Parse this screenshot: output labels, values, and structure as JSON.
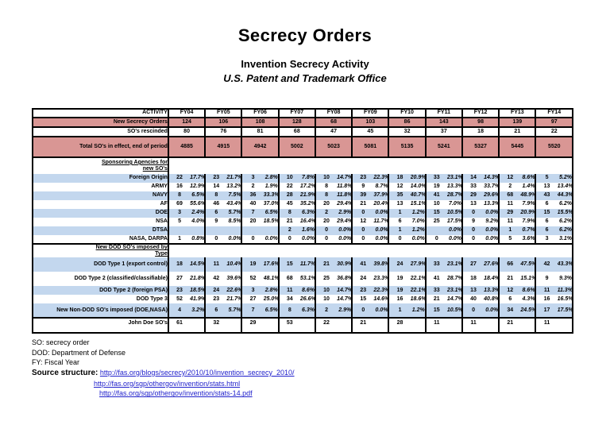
{
  "title": "Secrecy Orders",
  "subtitle1": "Invention Secrecy Activity",
  "subtitle2": "U.S. Patent and Trademark Office",
  "colors": {
    "row_pink": "#D99694",
    "row_blue": "#C3D7EE",
    "link_blue": "#2222cc",
    "border": "#000000"
  },
  "table": {
    "activity_header": "ACTIVITY",
    "years": [
      "FY04",
      "FY05",
      "FY06",
      "FY07",
      "FY08",
      "FY09",
      "FY10",
      "FY11",
      "FY12",
      "FY13",
      "FY14"
    ],
    "top_rows": [
      {
        "label": "New Secrecy Orders",
        "shade": "pink",
        "values": [
          "124",
          "106",
          "108",
          "128",
          "68",
          "103",
          "86",
          "143",
          "98",
          "139",
          "97"
        ]
      },
      {
        "label": "SO's rescinded",
        "shade": "",
        "values": [
          "80",
          "76",
          "81",
          "68",
          "47",
          "45",
          "32",
          "37",
          "18",
          "21",
          "22"
        ]
      },
      {
        "label": "Total SO's in effect, end of period",
        "shade": "pink",
        "values": [
          "4885",
          "4915",
          "4942",
          "5002",
          "5023",
          "5081",
          "5135",
          "5241",
          "5327",
          "5445",
          "5520"
        ]
      }
    ],
    "sections": [
      {
        "header_lines": [
          "Sponsoring Agencies for",
          "new SO's"
        ],
        "rows": [
          {
            "label": "Foreign Origin",
            "shade": "blue",
            "cells": [
              [
                "22",
                "17.7%"
              ],
              [
                "23",
                "21.7%"
              ],
              [
                "3",
                "2.8%"
              ],
              [
                "10",
                "7.8%"
              ],
              [
                "10",
                "14.7%"
              ],
              [
                "23",
                "22.3%"
              ],
              [
                "18",
                "20.9%"
              ],
              [
                "33",
                "23.1%"
              ],
              [
                "14",
                "14.3%"
              ],
              [
                "12",
                "8.6%"
              ],
              [
                "5",
                "5.2%"
              ]
            ]
          },
          {
            "label": "ARMY",
            "shade": "",
            "cells": [
              [
                "16",
                "12.9%"
              ],
              [
                "14",
                "13.2%"
              ],
              [
                "2",
                "1.9%"
              ],
              [
                "22",
                "17.2%"
              ],
              [
                "8",
                "11.8%"
              ],
              [
                "9",
                "8.7%"
              ],
              [
                "12",
                "14.0%"
              ],
              [
                "19",
                "13.3%"
              ],
              [
                "33",
                "33.7%"
              ],
              [
                "2",
                "1.4%"
              ],
              [
                "13",
                "13.4%"
              ]
            ]
          },
          {
            "label": "NAVY",
            "shade": "blue",
            "cells": [
              [
                "8",
                "6.5%"
              ],
              [
                "8",
                "7.5%"
              ],
              [
                "36",
                "33.3%"
              ],
              [
                "28",
                "21.9%"
              ],
              [
                "8",
                "11.8%"
              ],
              [
                "39",
                "37.9%"
              ],
              [
                "35",
                "40.7%"
              ],
              [
                "41",
                "28.7%"
              ],
              [
                "29",
                "29.6%"
              ],
              [
                "68",
                "48.9%"
              ],
              [
                "43",
                "44.3%"
              ]
            ]
          },
          {
            "label": "AF",
            "shade": "",
            "cells": [
              [
                "69",
                "55.6%"
              ],
              [
                "46",
                "43.4%"
              ],
              [
                "40",
                "37.0%"
              ],
              [
                "45",
                "35.2%"
              ],
              [
                "20",
                "29.4%"
              ],
              [
                "21",
                "20.4%"
              ],
              [
                "13",
                "15.1%"
              ],
              [
                "10",
                "7.0%"
              ],
              [
                "13",
                "13.3%"
              ],
              [
                "11",
                "7.9%"
              ],
              [
                "6",
                "6.2%"
              ]
            ]
          },
          {
            "label": "DOE",
            "shade": "blue",
            "cells": [
              [
                "3",
                "2.4%"
              ],
              [
                "6",
                "5.7%"
              ],
              [
                "7",
                "6.5%"
              ],
              [
                "8",
                "6.3%"
              ],
              [
                "2",
                "2.9%"
              ],
              [
                "0",
                "0.0%"
              ],
              [
                "1",
                "1.2%"
              ],
              [
                "15",
                "10.5%"
              ],
              [
                "0",
                "0.0%"
              ],
              [
                "29",
                "20.9%"
              ],
              [
                "15",
                "15.5%"
              ]
            ]
          },
          {
            "label": "NSA",
            "shade": "",
            "cells": [
              [
                "5",
                "4.0%"
              ],
              [
                "9",
                "8.5%"
              ],
              [
                "20",
                "18.5%"
              ],
              [
                "21",
                "16.4%"
              ],
              [
                "20",
                "29.4%"
              ],
              [
                "12",
                "11.7%"
              ],
              [
                "6",
                "7.0%"
              ],
              [
                "25",
                "17.5%"
              ],
              [
                "9",
                "9.2%"
              ],
              [
                "11",
                "7.9%"
              ],
              [
                "6",
                "6.2%"
              ]
            ]
          },
          {
            "label": "DTSA",
            "shade": "blue",
            "cells": [
              [
                "",
                ""
              ],
              [
                "",
                ""
              ],
              [
                "",
                ""
              ],
              [
                "2",
                "1.6%"
              ],
              [
                "0",
                "0.0%"
              ],
              [
                "0",
                "0.0%"
              ],
              [
                "1",
                "1.2%"
              ],
              [
                "",
                "0.0%"
              ],
              [
                "0",
                "0.0%"
              ],
              [
                "1",
                "0.7%"
              ],
              [
                "6",
                "6.2%"
              ]
            ]
          },
          {
            "label": "NASA, DARPA",
            "shade": "",
            "cells": [
              [
                "1",
                "0.8%"
              ],
              [
                "0",
                "0.0%"
              ],
              [
                "0",
                "0.0%"
              ],
              [
                "0",
                "0.0%"
              ],
              [
                "0",
                "0.0%"
              ],
              [
                "0",
                "0.0%"
              ],
              [
                "0",
                "0.0%"
              ],
              [
                "0",
                "0.0%"
              ],
              [
                "0",
                "0.0%"
              ],
              [
                "5",
                "3.6%"
              ],
              [
                "3",
                "3.1%"
              ]
            ]
          }
        ]
      },
      {
        "header_lines": [
          "New DOD SO's imposed by",
          "Type"
        ],
        "rows": [
          {
            "label": "DOD Type 1 (export control)",
            "shade": "blue",
            "cells": [
              [
                "18",
                "14.5%"
              ],
              [
                "11",
                "10.4%"
              ],
              [
                "19",
                "17.6%"
              ],
              [
                "15",
                "11.7%"
              ],
              [
                "21",
                "30.9%"
              ],
              [
                "41",
                "39.8%"
              ],
              [
                "24",
                "27.9%"
              ],
              [
                "33",
                "23.1%"
              ],
              [
                "27",
                "27.6%"
              ],
              [
                "66",
                "47.5%"
              ],
              [
                "42",
                "43.3%"
              ]
            ]
          },
          {
            "label": "DOD Type 2 (classified/classifiable)",
            "shade": "",
            "cells": [
              [
                "27",
                "21.8%"
              ],
              [
                "42",
                "39.6%"
              ],
              [
                "52",
                "48.1%"
              ],
              [
                "68",
                "53.1%"
              ],
              [
                "25",
                "36.8%"
              ],
              [
                "24",
                "23.3%"
              ],
              [
                "19",
                "22.1%"
              ],
              [
                "41",
                "28.7%"
              ],
              [
                "18",
                "18.4%"
              ],
              [
                "21",
                "15.1%"
              ],
              [
                "9",
                "9.3%"
              ]
            ]
          },
          {
            "label": "DOD Type 2 (foreign PSA)",
            "shade": "blue",
            "cells": [
              [
                "23",
                "18.5%"
              ],
              [
                "24",
                "22.6%"
              ],
              [
                "3",
                "2.8%"
              ],
              [
                "11",
                "8.6%"
              ],
              [
                "10",
                "14.7%"
              ],
              [
                "23",
                "22.3%"
              ],
              [
                "19",
                "22.1%"
              ],
              [
                "33",
                "23.1%"
              ],
              [
                "13",
                "13.3%"
              ],
              [
                "12",
                "8.6%"
              ],
              [
                "11",
                "11.3%"
              ]
            ]
          },
          {
            "label": "DOD Type 3",
            "shade": "",
            "cells": [
              [
                "52",
                "41.9%"
              ],
              [
                "23",
                "21.7%"
              ],
              [
                "27",
                "25.0%"
              ],
              [
                "34",
                "26.6%"
              ],
              [
                "10",
                "14.7%"
              ],
              [
                "15",
                "14.6%"
              ],
              [
                "16",
                "18.6%"
              ],
              [
                "21",
                "14.7%"
              ],
              [
                "40",
                "40.8%"
              ],
              [
                "6",
                "4.3%"
              ],
              [
                "16",
                "16.5%"
              ]
            ]
          },
          {
            "label": "New Non-DOD SO's imposed (DOE,NASA)",
            "shade": "blue",
            "cells": [
              [
                "4",
                "3.2%"
              ],
              [
                "6",
                "5.7%"
              ],
              [
                "7",
                "6.5%"
              ],
              [
                "8",
                "6.3%"
              ],
              [
                "2",
                "2.9%"
              ],
              [
                "0",
                "0.0%"
              ],
              [
                "1",
                "1.2%"
              ],
              [
                "15",
                "10.5%"
              ],
              [
                "0",
                "0.0%"
              ],
              [
                "34",
                "24.5%"
              ],
              [
                "17",
                "17.5%"
              ]
            ]
          }
        ]
      }
    ],
    "john_doe_row": {
      "label": "John Doe SO's",
      "values": [
        "61",
        "32",
        "29",
        "53",
        "22",
        "21",
        "28",
        "11",
        "11",
        "21",
        "11"
      ]
    }
  },
  "footer": {
    "abbrev1": "SO: secrecy order",
    "abbrev2": "DOD: Department of Defense",
    "abbrev3": "FY: Fiscal Year",
    "source_label": "Source structure:",
    "links": [
      "http://fas.org/blogs/secrecy/2010/10/invention_secrecy_2010/",
      "http://fas.org/sgp/othergov/invention/stats.html",
      "http://fas.org/sgp/othergov/invention/stats-14.pdf"
    ]
  }
}
